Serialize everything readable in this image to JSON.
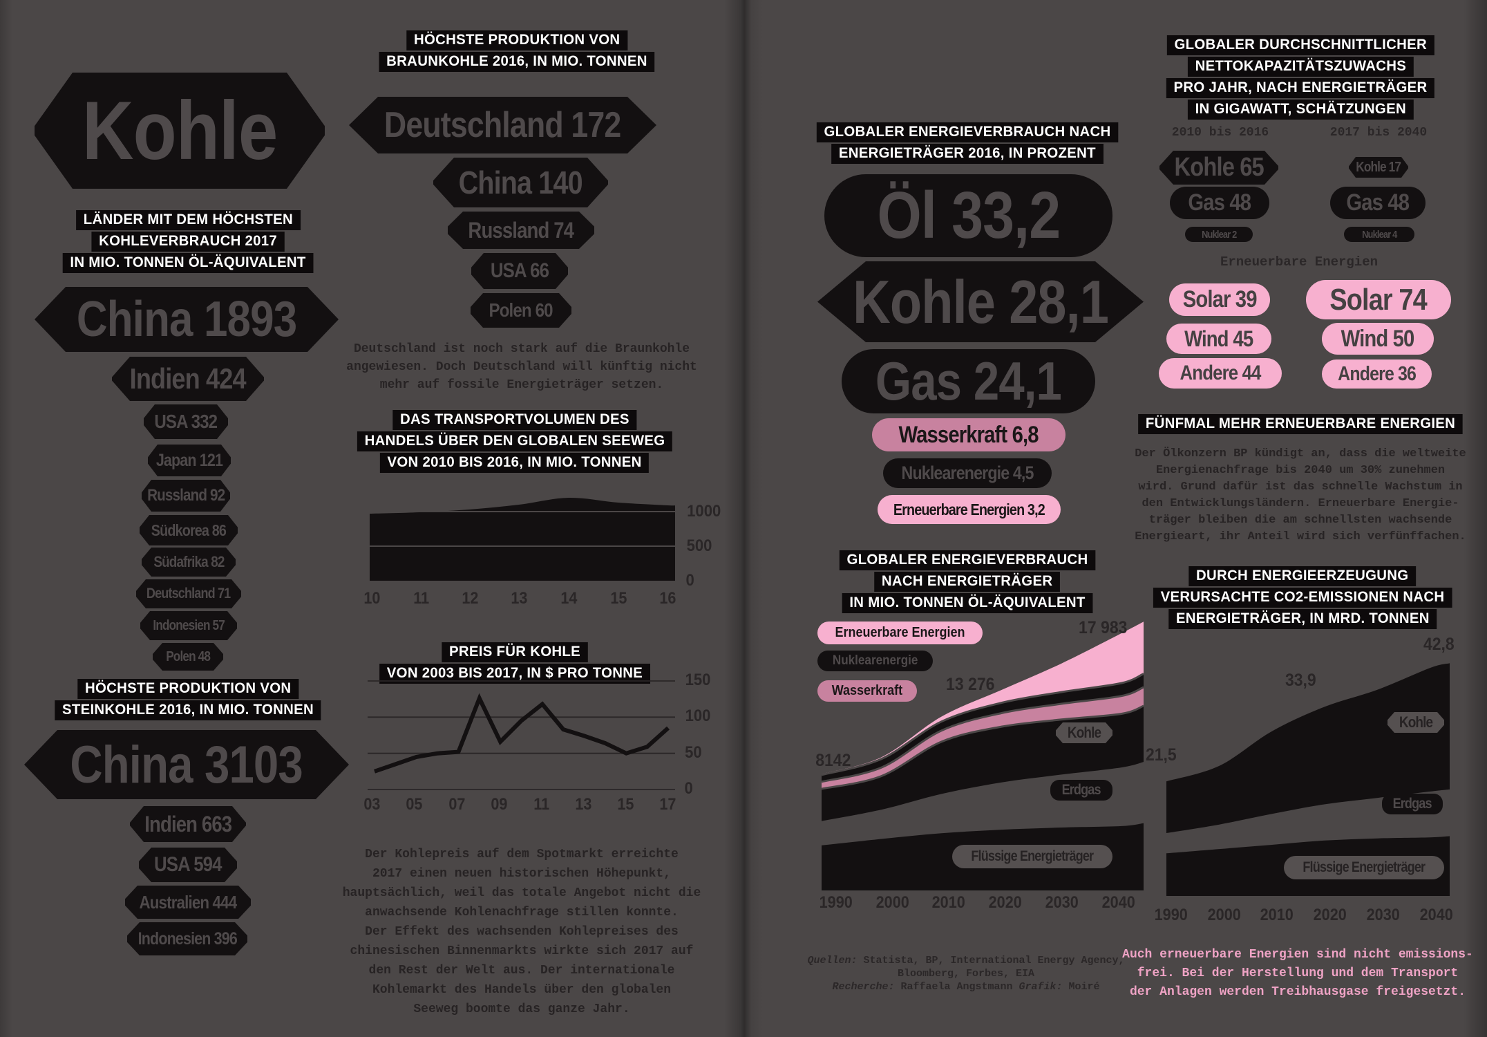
{
  "colors": {
    "bg": "#4b4747",
    "black": "#131011",
    "header_bg": "#0d0a0b",
    "badge_text": "#4f4a4b",
    "white": "#ffffff",
    "pink": "#f7b0cf",
    "mauve": "#c8829f",
    "pink_text": "#efa3c5",
    "body_text": "#272324",
    "label_badge_bg": "#555050"
  },
  "page1": {
    "title": "Kohle",
    "consumption": {
      "header": [
        "LÄNDER MIT DEM HÖCHSTEN",
        "KOHLEVERBRAUCH 2017",
        "IN MIO. TONNEN ÖL-ÄQUIVALENT"
      ],
      "items": [
        "China 1893",
        "Indien 424",
        "USA 332",
        "Japan 121",
        "Russland 92",
        "Südkorea 86",
        "Südafrika 82",
        "Deutschland 71",
        "Indonesien 57",
        "Polen 48"
      ]
    },
    "steinkohle": {
      "header": [
        "HÖCHSTE PRODUKTION VON",
        "STEINKOHLE 2016, IN MIO. TONNEN"
      ],
      "items": [
        "China 3103",
        "Indien 663",
        "USA 594",
        "Australien 444",
        "Indonesien 396"
      ]
    },
    "braunkohle": {
      "header": [
        "HÖCHSTE PRODUKTION VON",
        "BRAUNKOHLE 2016, IN MIO. TONNEN"
      ],
      "items": [
        "Deutschland 172",
        "China 140",
        "Russland 74",
        "USA 66",
        "Polen 60"
      ],
      "note": [
        "Deutschland ist noch stark auf die Braunkohle",
        "angewiesen. Doch Deutschland will künftig nicht",
        "mehr auf fossile Energieträger setzen."
      ]
    },
    "transport_header": [
      "DAS TRANSPORTVOLUMEN DES",
      "HANDELS ÜBER DEN GLOBALEN SEEWEG",
      "VON 2010 BIS 2016, IN MIO. TONNEN"
    ],
    "price_header": [
      "PREIS FÜR KOHLE",
      "VON 2003 BIS 2017, IN $ PRO TONNE"
    ],
    "price_note": [
      "Der Kohlepreis auf dem Spotmarkt erreichte",
      "2017 einen neuen historischen Höhepunkt,",
      "hauptsächlich, weil das totale Angebot nicht die",
      "anwachsende Kohlenachfrage stillen konnte.",
      "Der Effekt des wachsenden Kohlepreises des",
      "chinesischen Binnenmarkts wirkte sich 2017 auf",
      "den Rest der Welt aus. Der internationale",
      "Kohlemarkt des Handels über den globalen",
      "Seeweg boomte das ganze Jahr."
    ]
  },
  "page2": {
    "mix": {
      "header": [
        "GLOBALER ENERGIEVERBRAUCH NACH",
        "ENERGIETRÄGER 2016, IN PROZENT"
      ],
      "items": [
        "Öl 33,2",
        "Kohle 28,1",
        "Gas 24,1",
        "Wasserkraft 6,8",
        "Nuklearenergie 4,5",
        "Erneuerbare Energien 3,2"
      ]
    },
    "energy_header": [
      "GLOBALER ENERGIEVERBRAUCH",
      "NACH ENERGIETRÄGER",
      "IN MIO. TONNEN ÖL-ÄQUIVALENT"
    ],
    "capacity": {
      "header": [
        "GLOBALER DURCHSCHNITTLICHER",
        "NETTOKAPAZITÄTSZUWACHS",
        "PRO JAHR, NACH ENERGIETRÄGER",
        "IN GIGAWATT, SCHÄTZUNGEN"
      ],
      "periods": [
        "2010 bis 2016",
        "2017 bis 2040"
      ],
      "left": [
        "Kohle 65",
        "Gas 48",
        "Nuklear 2"
      ],
      "right": [
        "Kohle 17",
        "Gas 48",
        "Nuklear 4"
      ],
      "renewables_label": "Erneuerbare Energien",
      "left_renew": [
        "Solar 39",
        "Wind 45",
        "Andere 44"
      ],
      "right_renew": [
        "Solar 74",
        "Wind 50",
        "Andere 36"
      ]
    },
    "fuenfmal": {
      "header": "FÜNFMAL MEHR ERNEUERBARE ENERGIEN",
      "note": [
        "Der Ölkonzern BP kündigt an, dass die weltweite",
        "Energienachfrage bis 2040 um 30% zunehmen",
        "wird. Grund dafür ist das schnelle Wachstum in",
        "den Entwicklungsländern. Erneuerbare Energie-",
        "träger bleiben die am schnellsten wachsende",
        "Energieart, ihr Anteil wird sich verfünffachen."
      ]
    },
    "co2_header": [
      "DURCH ENERGIEERZEUGUNG",
      "VERURSACHTE CO2-EMISSIONEN NACH",
      "ENERGIETRÄGER, IN MRD. TONNEN"
    ],
    "sources": {
      "l1a": "Quellen:",
      "l1b": " Statista, BP, International Energy Agency,",
      "l2": "Bloomberg, Forbes, EIA",
      "l3a": "Recherche:",
      "l3b": " Raffaela Angstmann ",
      "l3c": "Grafik:",
      "l3d": " Moiré"
    },
    "pink_note": [
      "Auch erneuerbare Energien sind nicht emissions-",
      "frei. Bei der Herstellung und dem Transport",
      "der Anlagen werden Treibhausgase freigesetzt."
    ]
  },
  "chart_data": [
    {
      "type": "area",
      "name": "seaborne-coal-trade-volume",
      "title": "Das Transportvolumen des Handels über den globalen Seeweg 2010–2016, in Mio. Tonnen",
      "x": [
        2010,
        2011,
        2012,
        2013,
        2014,
        2015,
        2016
      ],
      "x_labels": [
        "10",
        "11",
        "12",
        "13",
        "14",
        "15",
        "16"
      ],
      "values": [
        970,
        990,
        1030,
        1100,
        1200,
        1130,
        1090
      ],
      "y_ticks": [
        "1000",
        "500",
        "0"
      ],
      "ylim": [
        0,
        1300
      ],
      "grid": true,
      "legend_position": "none"
    },
    {
      "type": "line",
      "name": "coal-price",
      "title": "Preis für Kohle von 2003 bis 2017, in $ pro Tonne",
      "x": [
        2003,
        2004,
        2005,
        2006,
        2007,
        2008,
        2009,
        2010,
        2011,
        2012,
        2013,
        2014,
        2015,
        2016,
        2017
      ],
      "x_labels": [
        "03",
        "05",
        "07",
        "09",
        "11",
        "13",
        "15",
        "17"
      ],
      "values": [
        25,
        35,
        45,
        50,
        52,
        126,
        66,
        95,
        118,
        83,
        74,
        64,
        50,
        59,
        85
      ],
      "y_ticks": [
        "150",
        "100",
        "50",
        "0"
      ],
      "ylim": [
        0,
        160
      ],
      "grid": true,
      "legend_position": "none"
    },
    {
      "type": "stacked-area",
      "name": "global-energy-consumption",
      "title": "Globaler Energieverbrauch nach Energieträger, in Mio. Tonnen Öl-Äquivalent",
      "x": [
        1990,
        2000,
        2010,
        2020,
        2030,
        2040
      ],
      "x_labels": [
        "1990",
        "2000",
        "2010",
        "2020",
        "2030",
        "2040"
      ],
      "series": [
        {
          "name": "Flüssige Energieträger",
          "color": "black",
          "values": [
            3150,
            3600,
            4000,
            4250,
            4400,
            4500
          ]
        },
        {
          "name": "Erdgas",
          "color": "bg",
          "values": [
            1700,
            2050,
            2750,
            3300,
            3700,
            4100
          ]
        },
        {
          "name": "Kohle",
          "color": "black",
          "values": [
            2250,
            2350,
            3650,
            3900,
            3850,
            3750
          ]
        },
        {
          "name": "Wasserkraft",
          "color": "mauve",
          "values": [
            500,
            600,
            780,
            950,
            1100,
            1250
          ]
        },
        {
          "name": "Nuklearenergie",
          "color": "black",
          "values": [
            480,
            600,
            630,
            720,
            820,
            900
          ]
        },
        {
          "name": "Erneuerbare Energien",
          "color": "pink",
          "values": [
            60,
            120,
            350,
            900,
            2000,
            3483
          ]
        }
      ],
      "legend": [
        "Erneuerbare Energien",
        "Nuklearenergie",
        "Wasserkraft"
      ],
      "annotations": [
        "8142",
        "13 276",
        "17 983"
      ],
      "band_labels": [
        "Kohle",
        "Erdgas",
        "Flüssige Energieträger"
      ],
      "legend_position": "top-left"
    },
    {
      "type": "stacked-area",
      "name": "co2-emissions-by-source",
      "title": "Durch Energieerzeugung verursachte CO2-Emissionen nach Energieträger, in Mrd. Tonnen",
      "x": [
        1990,
        2000,
        2010,
        2020,
        2030,
        2040
      ],
      "x_labels": [
        "1990",
        "2000",
        "2010",
        "2020",
        "2030",
        "2040"
      ],
      "series": [
        {
          "name": "Flüssige Energieträger",
          "color": "black",
          "values": [
            8.0,
            8.8,
            9.6,
            10.4,
            10.8,
            11.0
          ]
        },
        {
          "name": "Erdgas",
          "color": "bg",
          "values": [
            3.8,
            4.6,
            5.8,
            6.8,
            7.6,
            8.6
          ]
        },
        {
          "name": "Kohle",
          "color": "black",
          "values": [
            9.7,
            11.0,
            15.5,
            18.3,
            20.3,
            23.2
          ]
        }
      ],
      "annotations": [
        "21,5",
        "33,9",
        "42,8"
      ],
      "band_labels": [
        "Kohle",
        "Erdgas",
        "Flüssige Energieträger"
      ],
      "legend_position": "none"
    }
  ]
}
